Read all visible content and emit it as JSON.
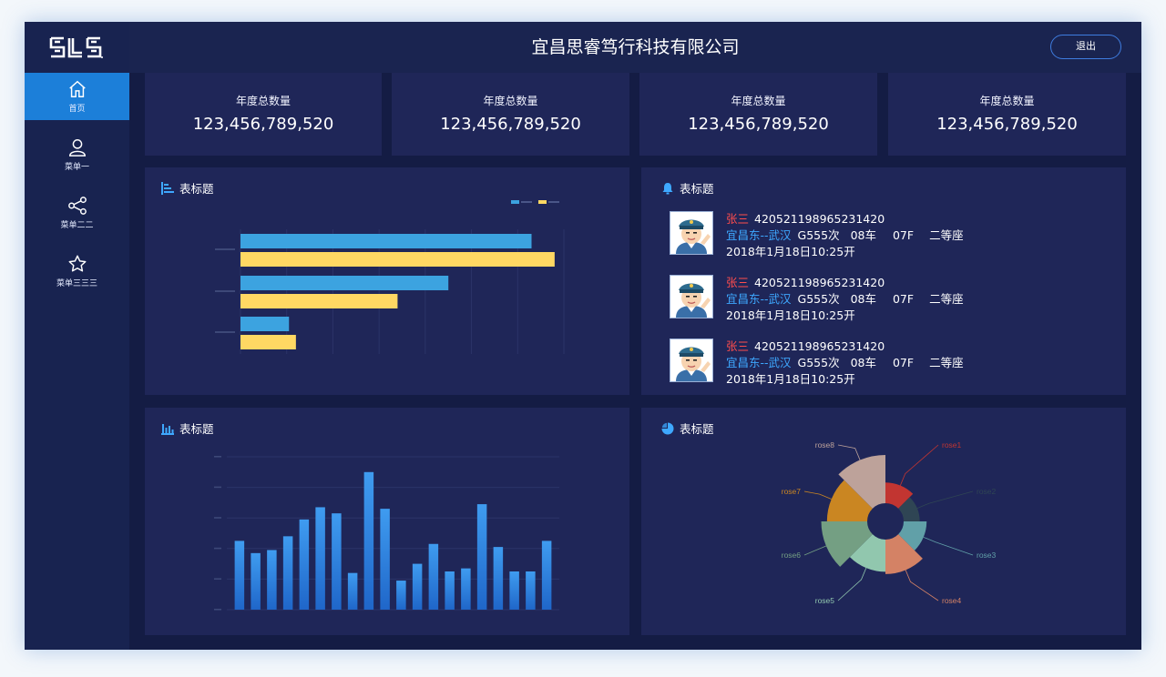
{
  "app": {
    "title": "宜昌思睿笃行科技有限公司",
    "logout_label": "退出"
  },
  "colors": {
    "accent": "#1c7fd9",
    "bar_blue": "#3ca3e0",
    "bar_yellow": "#ffd863",
    "route_blue": "#3ea8ff",
    "name_red": "#ff4d4d"
  },
  "sidebar": {
    "items": [
      {
        "label": "首页",
        "icon": "home-icon",
        "active": true
      },
      {
        "label": "菜单一",
        "icon": "user-icon",
        "active": false
      },
      {
        "label": "菜单二二",
        "icon": "share-icon",
        "active": false
      },
      {
        "label": "菜单三三三",
        "icon": "star-icon",
        "active": false
      }
    ]
  },
  "stats": [
    {
      "title": "年度总数量",
      "value": "123,456,789,520"
    },
    {
      "title": "年度总数量",
      "value": "123,456,789,520"
    },
    {
      "title": "年度总数量",
      "value": "123,456,789,520"
    },
    {
      "title": "年度总数量",
      "value": "123,456,789,520"
    }
  ],
  "panels": {
    "hbar": {
      "title": "表标题",
      "icon": "bar-list-icon"
    },
    "tickets": {
      "title": "表标题",
      "icon": "bell-icon"
    },
    "vbar": {
      "title": "表标题",
      "icon": "column-chart-icon"
    },
    "rose": {
      "title": "表标题",
      "icon": "pie-icon"
    }
  },
  "tickets": [
    {
      "name": "张三",
      "id": "420521198965231420",
      "route": "宜昌东--武汉",
      "train": "G555次",
      "car": "08车",
      "seat": "07F",
      "class": "二等座",
      "time": "2018年1月18日10:25开"
    },
    {
      "name": "张三",
      "id": "420521198965231420",
      "route": "宜昌东--武汉",
      "train": "G555次",
      "car": "08车",
      "seat": "07F",
      "class": "二等座",
      "time": "2018年1月18日10:25开"
    },
    {
      "name": "张三",
      "id": "420521198965231420",
      "route": "宜昌东--武汉",
      "train": "G555次",
      "car": "08车",
      "seat": "07F",
      "class": "二等座",
      "time": "2018年1月18日10:25开"
    }
  ],
  "chart_data": [
    {
      "type": "bar",
      "orientation": "horizontal",
      "categories": [
        "",
        "",
        ""
      ],
      "series": [
        {
          "values": [
            63,
            45,
            10.5
          ]
        },
        {
          "values": [
            68,
            34,
            12
          ]
        }
      ],
      "xlim": [
        0,
        70
      ],
      "legend": "top-right",
      "grid": true
    },
    {
      "type": "bar",
      "categories": [
        "",
        "",
        "",
        "",
        "",
        "",
        "",
        "",
        "",
        "",
        "",
        "",
        "",
        "",
        "",
        "",
        "",
        "",
        "",
        ""
      ],
      "values": [
        450,
        370,
        390,
        480,
        590,
        670,
        630,
        240,
        900,
        660,
        190,
        300,
        430,
        250,
        270,
        690,
        410,
        250,
        250,
        450
      ],
      "ylim": [
        0,
        1000
      ],
      "grid": true
    },
    {
      "type": "pie",
      "variant": "rose",
      "categories": [
        "rose1",
        "rose2",
        "rose3",
        "rose4",
        "rose5",
        "rose6",
        "rose7",
        "rose8"
      ],
      "values": [
        18,
        14,
        20,
        30,
        28,
        40,
        35,
        42
      ],
      "legend": "labels",
      "colors": [
        "#c23531",
        "#2f4554",
        "#61a0a8",
        "#d48265",
        "#91c7ae",
        "#749f83",
        "#ca8622",
        "#bda29a"
      ]
    }
  ]
}
